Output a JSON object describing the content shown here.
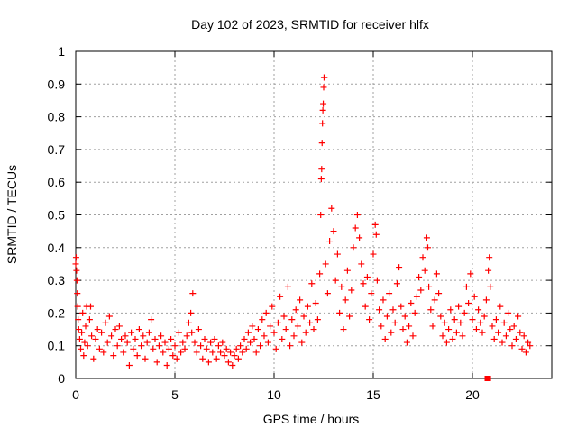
{
  "chart_data": {
    "type": "scatter",
    "title": "Day 102 of 2023, SRMTID for receiver hlfx",
    "xlabel": "GPS time / hours",
    "ylabel": "SRMTID / TECUs",
    "xlim": [
      0,
      24
    ],
    "ylim": [
      0,
      1
    ],
    "x_ticks": [
      0,
      5,
      10,
      15,
      20
    ],
    "x_tick_labels": [
      "0",
      "5",
      "10",
      "15",
      "20"
    ],
    "y_ticks": [
      0,
      0.1,
      0.2,
      0.3,
      0.4,
      0.5,
      0.6,
      0.7,
      0.8,
      0.9,
      1
    ],
    "y_tick_labels": [
      "0",
      "0.1",
      "0.2",
      "0.3",
      "0.4",
      "0.5",
      "0.6",
      "0.7",
      "0.8",
      "0.9",
      "1"
    ],
    "grid": true,
    "marker": "+",
    "series_color": "#ff0000",
    "series": [
      {
        "name": "SRMTID",
        "points": [
          [
            0.0,
            0.35
          ],
          [
            0.02,
            0.37
          ],
          [
            0.04,
            0.33
          ],
          [
            0.06,
            0.3
          ],
          [
            0.08,
            0.26
          ],
          [
            0.1,
            0.22
          ],
          [
            0.12,
            0.18
          ],
          [
            0.15,
            0.15
          ],
          [
            0.2,
            0.12
          ],
          [
            0.25,
            0.09
          ],
          [
            0.3,
            0.14
          ],
          [
            0.35,
            0.2
          ],
          [
            0.4,
            0.07
          ],
          [
            0.45,
            0.11
          ],
          [
            0.5,
            0.16
          ],
          [
            0.55,
            0.22
          ],
          [
            0.6,
            0.1
          ],
          [
            0.7,
            0.18
          ],
          [
            0.75,
            0.22
          ],
          [
            0.8,
            0.13
          ],
          [
            0.9,
            0.06
          ],
          [
            1.0,
            0.12
          ],
          [
            1.1,
            0.15
          ],
          [
            1.2,
            0.09
          ],
          [
            1.3,
            0.14
          ],
          [
            1.4,
            0.08
          ],
          [
            1.5,
            0.17
          ],
          [
            1.6,
            0.11
          ],
          [
            1.7,
            0.19
          ],
          [
            1.8,
            0.13
          ],
          [
            1.9,
            0.07
          ],
          [
            2.0,
            0.15
          ],
          [
            2.1,
            0.1
          ],
          [
            2.2,
            0.16
          ],
          [
            2.3,
            0.12
          ],
          [
            2.4,
            0.08
          ],
          [
            2.5,
            0.13
          ],
          [
            2.6,
            0.11
          ],
          [
            2.7,
            0.04
          ],
          [
            2.8,
            0.14
          ],
          [
            2.9,
            0.09
          ],
          [
            3.0,
            0.12
          ],
          [
            3.1,
            0.07
          ],
          [
            3.2,
            0.15
          ],
          [
            3.3,
            0.1
          ],
          [
            3.4,
            0.13
          ],
          [
            3.5,
            0.06
          ],
          [
            3.6,
            0.11
          ],
          [
            3.7,
            0.14
          ],
          [
            3.8,
            0.18
          ],
          [
            3.9,
            0.09
          ],
          [
            4.0,
            0.12
          ],
          [
            4.1,
            0.05
          ],
          [
            4.2,
            0.1
          ],
          [
            4.3,
            0.13
          ],
          [
            4.4,
            0.08
          ],
          [
            4.5,
            0.11
          ],
          [
            4.6,
            0.04
          ],
          [
            4.7,
            0.09
          ],
          [
            4.8,
            0.12
          ],
          [
            4.9,
            0.07
          ],
          [
            5.0,
            0.1
          ],
          [
            5.1,
            0.06
          ],
          [
            5.2,
            0.14
          ],
          [
            5.3,
            0.08
          ],
          [
            5.4,
            0.11
          ],
          [
            5.5,
            0.09
          ],
          [
            5.6,
            0.13
          ],
          [
            5.7,
            0.17
          ],
          [
            5.8,
            0.2
          ],
          [
            5.85,
            0.14
          ],
          [
            5.9,
            0.26
          ],
          [
            6.0,
            0.11
          ],
          [
            6.1,
            0.08
          ],
          [
            6.2,
            0.15
          ],
          [
            6.3,
            0.1
          ],
          [
            6.4,
            0.06
          ],
          [
            6.5,
            0.12
          ],
          [
            6.6,
            0.09
          ],
          [
            6.7,
            0.05
          ],
          [
            6.8,
            0.11
          ],
          [
            6.9,
            0.08
          ],
          [
            7.0,
            0.12
          ],
          [
            7.1,
            0.06
          ],
          [
            7.2,
            0.1
          ],
          [
            7.3,
            0.08
          ],
          [
            7.4,
            0.11
          ],
          [
            7.5,
            0.07
          ],
          [
            7.6,
            0.09
          ],
          [
            7.7,
            0.05
          ],
          [
            7.8,
            0.08
          ],
          [
            7.9,
            0.04
          ],
          [
            8.0,
            0.07
          ],
          [
            8.1,
            0.09
          ],
          [
            8.2,
            0.06
          ],
          [
            8.3,
            0.1
          ],
          [
            8.4,
            0.08
          ],
          [
            8.5,
            0.12
          ],
          [
            8.6,
            0.09
          ],
          [
            8.7,
            0.14
          ],
          [
            8.8,
            0.11
          ],
          [
            8.9,
            0.16
          ],
          [
            9.0,
            0.12
          ],
          [
            9.1,
            0.08
          ],
          [
            9.2,
            0.15
          ],
          [
            9.3,
            0.1
          ],
          [
            9.4,
            0.18
          ],
          [
            9.5,
            0.13
          ],
          [
            9.6,
            0.2
          ],
          [
            9.7,
            0.11
          ],
          [
            9.8,
            0.16
          ],
          [
            9.9,
            0.22
          ],
          [
            10.0,
            0.14
          ],
          [
            10.1,
            0.09
          ],
          [
            10.2,
            0.17
          ],
          [
            10.3,
            0.25
          ],
          [
            10.4,
            0.12
          ],
          [
            10.5,
            0.19
          ],
          [
            10.6,
            0.15
          ],
          [
            10.7,
            0.28
          ],
          [
            10.8,
            0.1
          ],
          [
            10.9,
            0.18
          ],
          [
            11.0,
            0.13
          ],
          [
            11.1,
            0.21
          ],
          [
            11.2,
            0.16
          ],
          [
            11.3,
            0.24
          ],
          [
            11.4,
            0.11
          ],
          [
            11.5,
            0.19
          ],
          [
            11.6,
            0.14
          ],
          [
            11.7,
            0.22
          ],
          [
            11.8,
            0.17
          ],
          [
            11.9,
            0.29
          ],
          [
            12.0,
            0.15
          ],
          [
            12.1,
            0.23
          ],
          [
            12.2,
            0.18
          ],
          [
            12.3,
            0.32
          ],
          [
            12.35,
            0.5
          ],
          [
            12.38,
            0.61
          ],
          [
            12.4,
            0.64
          ],
          [
            12.42,
            0.72
          ],
          [
            12.44,
            0.78
          ],
          [
            12.46,
            0.82
          ],
          [
            12.48,
            0.84
          ],
          [
            12.5,
            0.89
          ],
          [
            12.52,
            0.92
          ],
          [
            12.54,
            0.92
          ],
          [
            12.6,
            0.35
          ],
          [
            12.7,
            0.26
          ],
          [
            12.8,
            0.42
          ],
          [
            12.9,
            0.52
          ],
          [
            13.0,
            0.45
          ],
          [
            13.1,
            0.3
          ],
          [
            13.2,
            0.38
          ],
          [
            13.3,
            0.2
          ],
          [
            13.4,
            0.28
          ],
          [
            13.5,
            0.15
          ],
          [
            13.6,
            0.24
          ],
          [
            13.7,
            0.33
          ],
          [
            13.8,
            0.19
          ],
          [
            13.9,
            0.27
          ],
          [
            14.0,
            0.4
          ],
          [
            14.1,
            0.46
          ],
          [
            14.2,
            0.5
          ],
          [
            14.3,
            0.43
          ],
          [
            14.4,
            0.35
          ],
          [
            14.5,
            0.29
          ],
          [
            14.6,
            0.22
          ],
          [
            14.7,
            0.31
          ],
          [
            14.8,
            0.18
          ],
          [
            14.9,
            0.26
          ],
          [
            15.0,
            0.38
          ],
          [
            15.1,
            0.47
          ],
          [
            15.15,
            0.44
          ],
          [
            15.2,
            0.3
          ],
          [
            15.3,
            0.21
          ],
          [
            15.4,
            0.16
          ],
          [
            15.5,
            0.24
          ],
          [
            15.6,
            0.12
          ],
          [
            15.7,
            0.19
          ],
          [
            15.8,
            0.26
          ],
          [
            15.9,
            0.14
          ],
          [
            16.0,
            0.21
          ],
          [
            16.1,
            0.17
          ],
          [
            16.2,
            0.29
          ],
          [
            16.3,
            0.34
          ],
          [
            16.4,
            0.22
          ],
          [
            16.5,
            0.15
          ],
          [
            16.6,
            0.19
          ],
          [
            16.7,
            0.11
          ],
          [
            16.8,
            0.16
          ],
          [
            16.9,
            0.23
          ],
          [
            17.0,
            0.13
          ],
          [
            17.1,
            0.2
          ],
          [
            17.2,
            0.25
          ],
          [
            17.3,
            0.31
          ],
          [
            17.4,
            0.27
          ],
          [
            17.5,
            0.37
          ],
          [
            17.6,
            0.33
          ],
          [
            17.7,
            0.43
          ],
          [
            17.75,
            0.4
          ],
          [
            17.8,
            0.28
          ],
          [
            17.9,
            0.21
          ],
          [
            18.0,
            0.16
          ],
          [
            18.1,
            0.24
          ],
          [
            18.2,
            0.32
          ],
          [
            18.3,
            0.26
          ],
          [
            18.4,
            0.19
          ],
          [
            18.5,
            0.13
          ],
          [
            18.6,
            0.17
          ],
          [
            18.7,
            0.11
          ],
          [
            18.8,
            0.15
          ],
          [
            18.9,
            0.21
          ],
          [
            19.0,
            0.12
          ],
          [
            19.1,
            0.18
          ],
          [
            19.2,
            0.14
          ],
          [
            19.3,
            0.22
          ],
          [
            19.4,
            0.17
          ],
          [
            19.5,
            0.13
          ],
          [
            19.6,
            0.2
          ],
          [
            19.7,
            0.28
          ],
          [
            19.8,
            0.23
          ],
          [
            19.9,
            0.32
          ],
          [
            20.0,
            0.18
          ],
          [
            20.1,
            0.25
          ],
          [
            20.2,
            0.15
          ],
          [
            20.3,
            0.21
          ],
          [
            20.4,
            0.17
          ],
          [
            20.5,
            0.14
          ],
          [
            20.6,
            0.19
          ],
          [
            20.7,
            0.24
          ],
          [
            20.8,
            0.33
          ],
          [
            20.85,
            0.37
          ],
          [
            20.9,
            0.28
          ],
          [
            21.0,
            0.16
          ],
          [
            21.1,
            0.12
          ],
          [
            21.2,
            0.18
          ],
          [
            21.3,
            0.14
          ],
          [
            21.4,
            0.22
          ],
          [
            21.5,
            0.11
          ],
          [
            21.6,
            0.17
          ],
          [
            21.7,
            0.13
          ],
          [
            21.8,
            0.2
          ],
          [
            21.9,
            0.15
          ],
          [
            22.0,
            0.1
          ],
          [
            22.1,
            0.16
          ],
          [
            22.2,
            0.12
          ],
          [
            22.3,
            0.19
          ],
          [
            22.4,
            0.14
          ],
          [
            22.5,
            0.09
          ],
          [
            22.6,
            0.13
          ],
          [
            22.7,
            0.08
          ],
          [
            22.8,
            0.11
          ],
          [
            22.9,
            0.1
          ]
        ]
      }
    ],
    "outlier_squares": [
      [
        20.75,
        0.0
      ],
      [
        20.8,
        0.0
      ]
    ]
  }
}
